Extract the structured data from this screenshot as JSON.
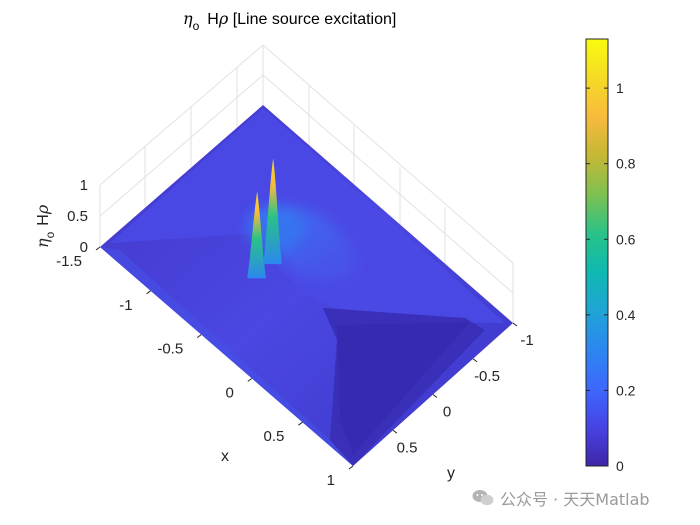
{
  "chart_data": {
    "type": "surface",
    "title": "ηo  Hρ [Line source excitation]",
    "title_parts": {
      "eta": "η",
      "eta_sub": "o",
      "rest": "H",
      "rho": "ρ",
      "tail": " [Line source excitation]"
    },
    "xlabel": "x",
    "ylabel": "y",
    "zlabel": "ηo  Hρ",
    "zlabel_parts": {
      "eta": "η",
      "eta_sub": "o",
      "H": "H",
      "rho": "ρ"
    },
    "xlim": [
      -1.5,
      1
    ],
    "ylim": [
      -1,
      1
    ],
    "zlim": [
      0,
      1
    ],
    "x_ticks": [
      -1.5,
      -1,
      -0.5,
      0,
      0.5,
      1
    ],
    "x_tick_labels": [
      "-1.5",
      "-1",
      "-0.5",
      "0",
      "0.5",
      "1"
    ],
    "y_ticks": [
      -1,
      -0.5,
      0,
      0.5
    ],
    "y_tick_labels": [
      "-1",
      "-0.5",
      "0",
      "0.5"
    ],
    "z_ticks": [
      0,
      0.5,
      1
    ],
    "z_tick_labels": [
      "0",
      "0.5",
      "1"
    ],
    "colorbar": {
      "colormap": "parula",
      "range": [
        0,
        1.13
      ],
      "ticks": [
        0,
        0.2,
        0.4,
        0.6,
        0.8,
        1
      ],
      "tick_labels": [
        "0",
        "0.2",
        "0.4",
        "0.6",
        "0.8",
        "1"
      ],
      "colors": [
        "#3e26a8",
        "#4743e4",
        "#3d68fe",
        "#2c87f0",
        "#1fa4d5",
        "#0fb9b1",
        "#29c287",
        "#7ec151",
        "#c5b834",
        "#f8ba3d",
        "#f5db25",
        "#f9fb0e"
      ]
    },
    "peaks": [
      {
        "name": "peak-1",
        "x": -0.55,
        "y": 0.25,
        "value": 0.85
      },
      {
        "name": "peak-2",
        "x": -0.55,
        "y": 0.05,
        "value": 1.05
      }
    ],
    "grid": true,
    "view": "3-D surface, wedge-shaped low region toward +x"
  },
  "watermark": {
    "text": "公众号 · 天天Matlab"
  }
}
